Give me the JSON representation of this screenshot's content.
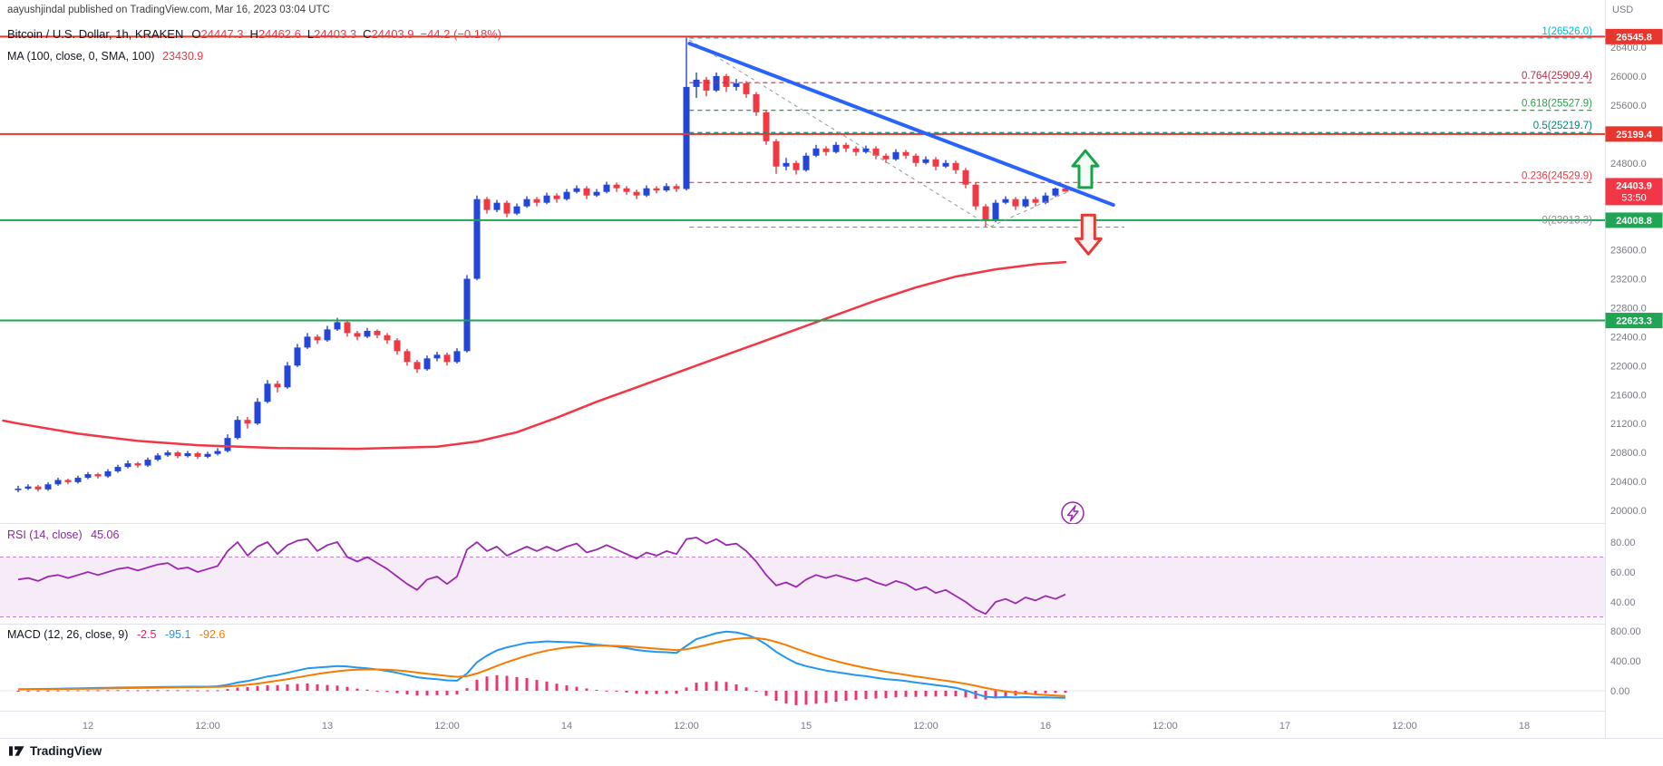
{
  "watermark": "aayushjindal published on TradingView.com, Mar 16, 2023 03:04 UTC",
  "symbol_legend": {
    "title": "Bitcoin / U.S. Dollar, 1h, KRAKEN",
    "o_label": "O",
    "o": "24447.3",
    "h_label": "H",
    "h": "24462.6",
    "l_label": "L",
    "l": "24403.3",
    "c_label": "C",
    "c": "24403.9",
    "change": "−44.2 (−0.18%)"
  },
  "ma_legend": {
    "label": "MA (100, close, 0, SMA, 100)",
    "value": "23430.9"
  },
  "rsi_legend": {
    "label": "RSI (14, close)",
    "value": "45.06"
  },
  "macd_legend": {
    "label": "MACD (12, 26, close, 9)",
    "hist": "-2.5",
    "macd": "-95.1",
    "signal": "-92.6"
  },
  "price_scale_currency": "USD",
  "footer": {
    "brand": "TradingView"
  },
  "chart_data": {
    "type": "candlestick",
    "title": "Bitcoin / U.S. Dollar, 1h, KRAKEN",
    "interval": "1h",
    "exchange": "KRAKEN",
    "last_price": 24403.9,
    "x_axis": {
      "labels": [
        [
          "12",
          7
        ],
        [
          "12:00",
          19
        ],
        [
          "13",
          31
        ],
        [
          "12:00",
          43
        ],
        [
          "14",
          55
        ],
        [
          "12:00",
          67
        ],
        [
          "15",
          79
        ],
        [
          "12:00",
          91
        ],
        [
          "16",
          103
        ],
        [
          "12:00",
          115
        ],
        [
          "17",
          127
        ],
        [
          "12:00",
          139
        ],
        [
          "18",
          151
        ]
      ]
    },
    "price_axis": {
      "range": [
        19900,
        26650
      ],
      "ticks": [
        26400,
        26000,
        25600,
        25200,
        24800,
        24400,
        24000,
        23600,
        23200,
        22800,
        22400,
        22000,
        21600,
        21200,
        20800,
        20400,
        20000
      ]
    },
    "candles": [
      [
        20280,
        20340,
        20250,
        20300
      ],
      [
        20300,
        20360,
        20280,
        20330
      ],
      [
        20330,
        20350,
        20260,
        20290
      ],
      [
        20290,
        20390,
        20270,
        20360
      ],
      [
        20360,
        20450,
        20340,
        20420
      ],
      [
        20420,
        20440,
        20360,
        20390
      ],
      [
        20390,
        20480,
        20370,
        20450
      ],
      [
        20450,
        20530,
        20430,
        20500
      ],
      [
        20500,
        20520,
        20440,
        20470
      ],
      [
        20470,
        20570,
        20450,
        20540
      ],
      [
        20540,
        20630,
        20520,
        20600
      ],
      [
        20600,
        20690,
        20580,
        20650
      ],
      [
        20650,
        20670,
        20590,
        20620
      ],
      [
        20620,
        20730,
        20600,
        20700
      ],
      [
        20700,
        20790,
        20680,
        20760
      ],
      [
        20760,
        20830,
        20740,
        20800
      ],
      [
        20800,
        20820,
        20720,
        20750
      ],
      [
        20750,
        20820,
        20730,
        20790
      ],
      [
        20790,
        20810,
        20710,
        20740
      ],
      [
        20740,
        20810,
        20720,
        20780
      ],
      [
        20780,
        20860,
        20760,
        20820
      ],
      [
        20820,
        21050,
        20800,
        21000
      ],
      [
        21000,
        21300,
        20980,
        21250
      ],
      [
        21250,
        21290,
        21130,
        21200
      ],
      [
        21200,
        21550,
        21180,
        21500
      ],
      [
        21500,
        21800,
        21480,
        21750
      ],
      [
        21750,
        21790,
        21630,
        21700
      ],
      [
        21700,
        22050,
        21680,
        22000
      ],
      [
        22000,
        22300,
        21980,
        22250
      ],
      [
        22250,
        22450,
        22230,
        22400
      ],
      [
        22400,
        22430,
        22300,
        22350
      ],
      [
        22350,
        22550,
        22330,
        22500
      ],
      [
        22500,
        22660,
        22480,
        22600
      ],
      [
        22600,
        22630,
        22400,
        22450
      ],
      [
        22450,
        22480,
        22350,
        22400
      ],
      [
        22400,
        22520,
        22380,
        22480
      ],
      [
        22480,
        22500,
        22380,
        22420
      ],
      [
        22420,
        22450,
        22300,
        22350
      ],
      [
        22350,
        22380,
        22150,
        22200
      ],
      [
        22200,
        22230,
        22000,
        22050
      ],
      [
        22050,
        22080,
        21900,
        21950
      ],
      [
        21950,
        22140,
        21930,
        22100
      ],
      [
        22100,
        22190,
        22060,
        22150
      ],
      [
        22150,
        22180,
        22000,
        22050
      ],
      [
        22050,
        22240,
        22030,
        22200
      ],
      [
        22200,
        23250,
        22180,
        23200
      ],
      [
        23200,
        24350,
        23180,
        24300
      ],
      [
        24300,
        24330,
        24100,
        24150
      ],
      [
        24150,
        24290,
        24120,
        24250
      ],
      [
        24250,
        24280,
        24050,
        24100
      ],
      [
        24100,
        24240,
        24080,
        24200
      ],
      [
        24200,
        24340,
        24180,
        24300
      ],
      [
        24300,
        24330,
        24200,
        24250
      ],
      [
        24250,
        24390,
        24230,
        24350
      ],
      [
        24350,
        24380,
        24250,
        24300
      ],
      [
        24300,
        24440,
        24280,
        24400
      ],
      [
        24400,
        24490,
        24380,
        24450
      ],
      [
        24450,
        24480,
        24300,
        24350
      ],
      [
        24350,
        24440,
        24330,
        24400
      ],
      [
        24400,
        24540,
        24380,
        24500
      ],
      [
        24500,
        24530,
        24400,
        24450
      ],
      [
        24450,
        24480,
        24360,
        24400
      ],
      [
        24400,
        24430,
        24300,
        24350
      ],
      [
        24350,
        24490,
        24330,
        24450
      ],
      [
        24450,
        24480,
        24380,
        24420
      ],
      [
        24420,
        24520,
        24400,
        24480
      ],
      [
        24480,
        24510,
        24400,
        24440
      ],
      [
        24440,
        26530,
        24420,
        25850
      ],
      [
        25850,
        26050,
        25700,
        25950
      ],
      [
        25950,
        25990,
        25720,
        25800
      ],
      [
        25800,
        26050,
        25780,
        26000
      ],
      [
        26000,
        26030,
        25780,
        25850
      ],
      [
        25850,
        25960,
        25800,
        25900
      ],
      [
        25900,
        25930,
        25700,
        25750
      ],
      [
        25750,
        25780,
        25450,
        25500
      ],
      [
        25500,
        25530,
        25050,
        25100
      ],
      [
        25100,
        25130,
        24650,
        24750
      ],
      [
        24750,
        24870,
        24700,
        24800
      ],
      [
        24800,
        24830,
        24640,
        24700
      ],
      [
        24700,
        24940,
        24680,
        24900
      ],
      [
        24900,
        25050,
        24880,
        25000
      ],
      [
        25000,
        25030,
        24900,
        24950
      ],
      [
        24950,
        25090,
        24930,
        25050
      ],
      [
        25050,
        25080,
        24950,
        25000
      ],
      [
        25000,
        25030,
        24900,
        24950
      ],
      [
        24950,
        25040,
        24930,
        25000
      ],
      [
        25000,
        25030,
        24850,
        24900
      ],
      [
        24900,
        24930,
        24800,
        24850
      ],
      [
        24850,
        24990,
        24830,
        24950
      ],
      [
        24950,
        24980,
        24860,
        24900
      ],
      [
        24900,
        24930,
        24750,
        24800
      ],
      [
        24800,
        24890,
        24780,
        24850
      ],
      [
        24850,
        24880,
        24700,
        24750
      ],
      [
        24750,
        24840,
        24730,
        24800
      ],
      [
        24800,
        24830,
        24650,
        24700
      ],
      [
        24700,
        24730,
        24450,
        24500
      ],
      [
        24500,
        24530,
        24150,
        24200
      ],
      [
        24200,
        24230,
        23913,
        24000
      ],
      [
        24000,
        24290,
        23980,
        24250
      ],
      [
        24250,
        24340,
        24230,
        24300
      ],
      [
        24300,
        24330,
        24150,
        24200
      ],
      [
        24200,
        24340,
        24180,
        24300
      ],
      [
        24300,
        24330,
        24200,
        24250
      ],
      [
        24250,
        24390,
        24230,
        24350
      ],
      [
        24350,
        24460,
        24330,
        24447
      ],
      [
        24447.3,
        24462.6,
        24403.3,
        24403.9
      ]
    ],
    "ma100": {
      "period": 100,
      "last": 23430.9,
      "points": [
        [
          -1.5,
          21240
        ],
        [
          0,
          21200
        ],
        [
          6,
          21060
        ],
        [
          12,
          20960
        ],
        [
          18,
          20900
        ],
        [
          26,
          20860
        ],
        [
          34,
          20850
        ],
        [
          42,
          20880
        ],
        [
          46,
          20950
        ],
        [
          50,
          21080
        ],
        [
          54,
          21280
        ],
        [
          58,
          21500
        ],
        [
          62,
          21700
        ],
        [
          66,
          21900
        ],
        [
          70,
          22100
        ],
        [
          74,
          22300
        ],
        [
          78,
          22500
        ],
        [
          82,
          22700
        ],
        [
          86,
          22900
        ],
        [
          90,
          23080
        ],
        [
          94,
          23230
        ],
        [
          98,
          23330
        ],
        [
          102,
          23400
        ],
        [
          105,
          23430.9
        ]
      ]
    },
    "trendline": {
      "from": [
        67.3,
        26450
      ],
      "to": [
        109.8,
        24220
      ],
      "color": "#2962ff"
    },
    "dashed_guides": [
      {
        "from": [
          67.3,
          26500
        ],
        "to": [
          97.5,
          23920
        ]
      },
      {
        "from": [
          97.5,
          23920
        ],
        "to": [
          106.5,
          24480
        ]
      }
    ],
    "hlines": [
      {
        "price": 26545.8,
        "color": "#e8352e"
      },
      {
        "price": 25199.4,
        "color": "#e8352e"
      },
      {
        "price": 24008.8,
        "color": "#1fa554"
      },
      {
        "price": 22623.3,
        "color": "#1fa554"
      }
    ],
    "last_tag": {
      "text": "24403.9",
      "countdown": "53:50",
      "price": 24403.9,
      "color": "#f23645"
    },
    "fib": {
      "x_start_idx": 67.3,
      "levels": [
        {
          "label": "1(26526.0)",
          "price": 26526.0,
          "color": "#00bcd4"
        },
        {
          "label": "0.764(25909.4)",
          "price": 25909.4,
          "color": "#b03246"
        },
        {
          "label": "0.618(25527.9)",
          "price": 25527.9,
          "color": "#28a049"
        },
        {
          "label": "0.5(25219.7)",
          "price": 25219.7,
          "color": "#00897b"
        },
        {
          "label": "0.236(24529.9)",
          "price": 24529.9,
          "color": "#f23645"
        },
        {
          "label": "0(23913.3)",
          "price": 23913.3,
          "color": "#8c8c94",
          "short": true
        }
      ]
    },
    "rsi": {
      "period": 14,
      "last": 45.06,
      "band": [
        30,
        70
      ],
      "ticks": [
        80,
        60,
        40
      ],
      "values": [
        55,
        56,
        54,
        57,
        58,
        56,
        58,
        60,
        58,
        60,
        62,
        63,
        61,
        63,
        65,
        66,
        62,
        63,
        60,
        62,
        64,
        74,
        80,
        71,
        77,
        80,
        72,
        78,
        81,
        82,
        74,
        78,
        80,
        70,
        67,
        70,
        66,
        62,
        57,
        52,
        48,
        55,
        57,
        52,
        57,
        75,
        80,
        74,
        77,
        71,
        74,
        77,
        74,
        77,
        74,
        77,
        79,
        73,
        75,
        78,
        75,
        72,
        69,
        73,
        71,
        74,
        72,
        82,
        83,
        79,
        82,
        78,
        79,
        74,
        67,
        58,
        51,
        53,
        50,
        55,
        58,
        56,
        58,
        56,
        54,
        56,
        53,
        51,
        54,
        52,
        48,
        50,
        46,
        48,
        44,
        40,
        35,
        32,
        40,
        42,
        39,
        43,
        41,
        44,
        42,
        45.06
      ]
    },
    "macd": {
      "params": "12, 26, close, 9",
      "hist_last": -2.5,
      "macd_last": -95.1,
      "signal_last": -92.6,
      "ticks": [
        800,
        400,
        0
      ],
      "values": [
        20,
        22,
        24,
        25,
        27,
        30,
        32,
        35,
        37,
        40,
        42,
        44,
        45,
        47,
        50,
        52,
        53,
        54,
        54,
        55,
        60,
        80,
        110,
        130,
        160,
        190,
        210,
        240,
        270,
        300,
        310,
        320,
        330,
        325,
        310,
        300,
        285,
        265,
        240,
        210,
        180,
        165,
        155,
        140,
        135,
        230,
        380,
        470,
        540,
        580,
        610,
        640,
        650,
        660,
        655,
        650,
        645,
        630,
        615,
        605,
        590,
        570,
        545,
        530,
        520,
        515,
        505,
        600,
        690,
        730,
        770,
        790,
        780,
        750,
        700,
        620,
        520,
        440,
        370,
        330,
        300,
        270,
        250,
        230,
        210,
        195,
        175,
        155,
        145,
        130,
        110,
        95,
        75,
        60,
        40,
        5,
        -40,
        -80,
        -90,
        -85,
        -90,
        -85,
        -90,
        -88,
        -92,
        -95.1
      ]
    },
    "arrows": {
      "up": {
        "idx": 107,
        "base": 24460,
        "tip": 24970,
        "color": "#16a34a"
      },
      "down": {
        "idx": 107.3,
        "base": 24080,
        "tip": 23540,
        "color": "#e53935"
      }
    },
    "colors": {
      "up": "#2446d6",
      "down": "#ef3a44",
      "ma": "#f23645",
      "rsi": "#9c27b0",
      "macd_line": "#2196f3",
      "signal_line": "#f57c00",
      "hist": "#e91e63",
      "level_red": "#e8352e",
      "level_green": "#1fa554",
      "trend_blue": "#2962ff"
    }
  }
}
